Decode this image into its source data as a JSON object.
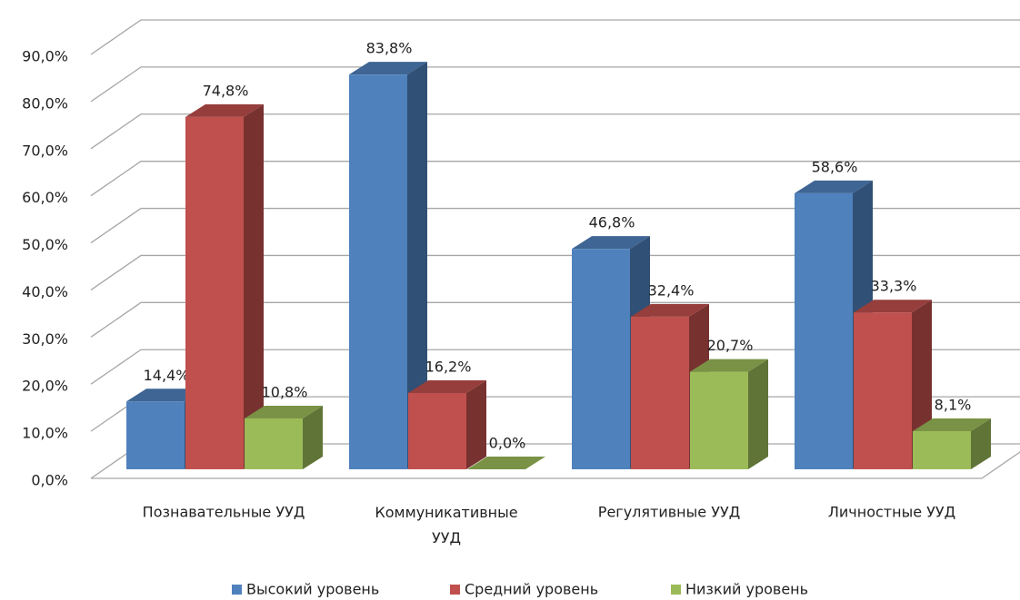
{
  "chart_data": {
    "type": "bar3d",
    "categories": [
      "Познавательные УУД",
      "Коммуникативные УУД",
      "Регулятивные УУД",
      "Личностные УУД"
    ],
    "series": [
      {
        "name": "Высокий уровень",
        "color": "#4f81bd",
        "values": [
          14.4,
          83.8,
          46.8,
          58.6
        ],
        "value_labels": [
          "14,4%",
          "83,8%",
          "46,8%",
          "58,6%"
        ]
      },
      {
        "name": "Средний уровень",
        "color": "#c0504d",
        "values": [
          74.8,
          16.2,
          32.4,
          33.3
        ],
        "value_labels": [
          "74,8%",
          "16,2%",
          "32,4%",
          "33,3%"
        ]
      },
      {
        "name": "Низкий уровень",
        "color": "#9bbb59",
        "values": [
          10.8,
          0.0,
          20.7,
          8.1
        ],
        "value_labels": [
          "10,8%",
          "0,0%",
          "20,7%",
          "8,1%"
        ]
      }
    ],
    "ylim": [
      0,
      90
    ],
    "yticks": [
      {
        "value": 0,
        "label": "0,0%"
      },
      {
        "value": 10,
        "label": "10,0%"
      },
      {
        "value": 20,
        "label": "20,0%"
      },
      {
        "value": 30,
        "label": "30,0%"
      },
      {
        "value": 40,
        "label": "40,0%"
      },
      {
        "value": 50,
        "label": "50,0%"
      },
      {
        "value": 60,
        "label": "60,0%"
      },
      {
        "value": 70,
        "label": "70,0%"
      },
      {
        "value": 80,
        "label": "80,0%"
      },
      {
        "value": 90,
        "label": "90,0%"
      }
    ],
    "grid": true,
    "legend": "bottom"
  }
}
